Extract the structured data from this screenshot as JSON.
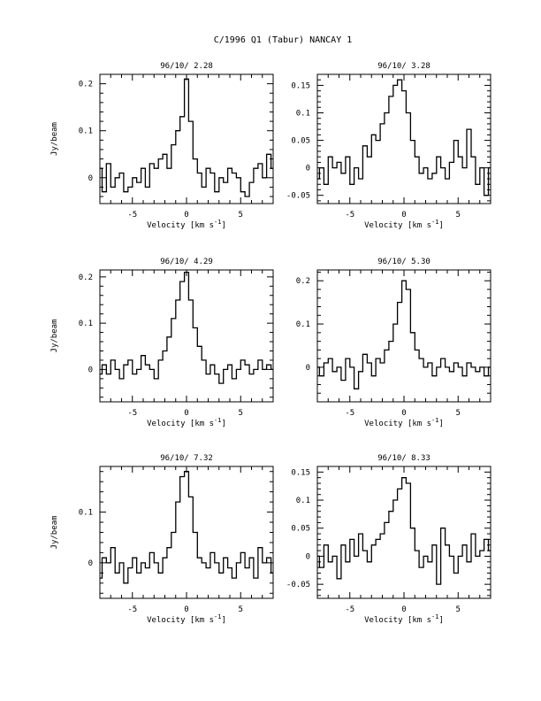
{
  "page_title": "C/1996 Q1 (Tabur)   NANCAY      1",
  "chart_data": [
    {
      "type": "line",
      "drawstyle": "steps",
      "title": "96/10/ 2.28",
      "xlabel": "Velocity [km s^-1]",
      "ylabel": "Jy/beam",
      "xlim": [
        -8,
        8
      ],
      "ylim": [
        -0.055,
        0.22
      ],
      "xticks": [
        -5,
        0,
        5
      ],
      "yticks": [
        0,
        0.1,
        0.2
      ],
      "ytick_labels": [
        "0",
        "0.1",
        "0.2"
      ],
      "series": [
        {
          "x": [
            -8.0,
            -7.6,
            -7.2,
            -6.8,
            -6.4,
            -6.0,
            -5.6,
            -5.2,
            -4.8,
            -4.4,
            -4.0,
            -3.6,
            -3.2,
            -2.8,
            -2.4,
            -2.0,
            -1.6,
            -1.2,
            -0.8,
            -0.4,
            0.0,
            0.4,
            0.8,
            1.2,
            1.6,
            2.0,
            2.4,
            2.8,
            3.2,
            3.6,
            4.0,
            4.4,
            4.8,
            5.2,
            5.6,
            6.0,
            6.4,
            6.8,
            7.2,
            7.6,
            8.0
          ],
          "y": [
            0.02,
            -0.03,
            0.03,
            -0.02,
            0.0,
            0.01,
            -0.03,
            -0.02,
            0.0,
            -0.01,
            0.02,
            -0.02,
            0.03,
            0.02,
            0.04,
            0.05,
            0.02,
            0.07,
            0.1,
            0.13,
            0.21,
            0.12,
            0.04,
            0.01,
            -0.02,
            0.02,
            0.01,
            -0.03,
            0.0,
            -0.01,
            0.02,
            0.01,
            0.0,
            -0.03,
            -0.04,
            -0.01,
            0.02,
            0.03,
            0.0,
            0.05,
            0.02
          ]
        }
      ]
    },
    {
      "type": "line",
      "drawstyle": "steps",
      "title": "96/10/ 3.28",
      "xlabel": "Velocity [km s^-1]",
      "ylabel": "",
      "xlim": [
        -8,
        8
      ],
      "ylim": [
        -0.065,
        0.17
      ],
      "xticks": [
        -5,
        0,
        5
      ],
      "yticks": [
        -0.05,
        0,
        0.05,
        0.1,
        0.15
      ],
      "ytick_labels": [
        "-0.05",
        "0",
        "0.05",
        "0.1",
        "0.15"
      ],
      "series": [
        {
          "x": [
            -8.0,
            -7.6,
            -7.2,
            -6.8,
            -6.4,
            -6.0,
            -5.6,
            -5.2,
            -4.8,
            -4.4,
            -4.0,
            -3.6,
            -3.2,
            -2.8,
            -2.4,
            -2.0,
            -1.6,
            -1.2,
            -0.8,
            -0.4,
            0.0,
            0.4,
            0.8,
            1.2,
            1.6,
            2.0,
            2.4,
            2.8,
            3.2,
            3.6,
            4.0,
            4.4,
            4.8,
            5.2,
            5.6,
            6.0,
            6.4,
            6.8,
            7.2,
            7.6,
            8.0
          ],
          "y": [
            -0.02,
            0.0,
            -0.03,
            0.02,
            0.0,
            0.01,
            -0.01,
            0.02,
            -0.03,
            0.0,
            -0.02,
            0.04,
            0.02,
            0.06,
            0.05,
            0.08,
            0.1,
            0.13,
            0.15,
            0.16,
            0.14,
            0.1,
            0.05,
            0.02,
            -0.01,
            0.0,
            -0.02,
            -0.01,
            0.02,
            0.0,
            -0.02,
            0.01,
            0.05,
            0.02,
            0.0,
            0.07,
            0.02,
            -0.03,
            0.0,
            -0.05,
            0.0
          ]
        }
      ]
    },
    {
      "type": "line",
      "drawstyle": "steps",
      "title": "96/10/ 4.29",
      "xlabel": "Velocity [km s^-1]",
      "ylabel": "Jy/beam",
      "xlim": [
        -8,
        8
      ],
      "ylim": [
        -0.07,
        0.215
      ],
      "xticks": [
        -5,
        0,
        5
      ],
      "yticks": [
        0,
        0.1,
        0.2
      ],
      "ytick_labels": [
        "0",
        "0.1",
        "0.2"
      ],
      "series": [
        {
          "x": [
            -8.0,
            -7.6,
            -7.2,
            -6.8,
            -6.4,
            -6.0,
            -5.6,
            -5.2,
            -4.8,
            -4.4,
            -4.0,
            -3.6,
            -3.2,
            -2.8,
            -2.4,
            -2.0,
            -1.6,
            -1.2,
            -0.8,
            -0.4,
            0.0,
            0.4,
            0.8,
            1.2,
            1.6,
            2.0,
            2.4,
            2.8,
            3.2,
            3.6,
            4.0,
            4.4,
            4.8,
            5.2,
            5.6,
            6.0,
            6.4,
            6.8,
            7.2,
            7.6,
            8.0
          ],
          "y": [
            -0.01,
            0.01,
            -0.01,
            0.02,
            0.0,
            -0.02,
            0.01,
            0.02,
            -0.01,
            0.0,
            0.03,
            0.01,
            0.0,
            -0.02,
            0.02,
            0.04,
            0.07,
            0.11,
            0.15,
            0.19,
            0.21,
            0.15,
            0.09,
            0.05,
            0.02,
            -0.01,
            0.01,
            -0.01,
            -0.03,
            0.0,
            0.01,
            -0.02,
            0.0,
            0.02,
            0.01,
            -0.01,
            0.0,
            0.02,
            0.0,
            0.01,
            0.0
          ]
        }
      ]
    },
    {
      "type": "line",
      "drawstyle": "steps",
      "title": "96/10/ 5.30",
      "xlabel": "Velocity [km s^-1]",
      "ylabel": "",
      "xlim": [
        -8,
        8
      ],
      "ylim": [
        -0.08,
        0.225
      ],
      "xticks": [
        -5,
        0,
        5
      ],
      "yticks": [
        0,
        0.1,
        0.2
      ],
      "ytick_labels": [
        "0",
        "0.1",
        "0.2"
      ],
      "series": [
        {
          "x": [
            -8.0,
            -7.6,
            -7.2,
            -6.8,
            -6.4,
            -6.0,
            -5.6,
            -5.2,
            -4.8,
            -4.4,
            -4.0,
            -3.6,
            -3.2,
            -2.8,
            -2.4,
            -2.0,
            -1.6,
            -1.2,
            -0.8,
            -0.4,
            0.0,
            0.4,
            0.8,
            1.2,
            1.6,
            2.0,
            2.4,
            2.8,
            3.2,
            3.6,
            4.0,
            4.4,
            4.8,
            5.2,
            5.6,
            6.0,
            6.4,
            6.8,
            7.2,
            7.6,
            8.0
          ],
          "y": [
            0.0,
            -0.02,
            0.01,
            0.02,
            -0.01,
            0.0,
            -0.03,
            0.02,
            0.0,
            -0.05,
            -0.01,
            0.03,
            0.01,
            -0.02,
            0.02,
            0.01,
            0.04,
            0.06,
            0.1,
            0.15,
            0.2,
            0.18,
            0.08,
            0.04,
            0.02,
            0.0,
            0.01,
            -0.02,
            0.0,
            0.02,
            0.0,
            -0.01,
            0.01,
            0.0,
            -0.02,
            0.01,
            0.0,
            -0.01,
            0.0,
            -0.02,
            0.0
          ]
        }
      ]
    },
    {
      "type": "line",
      "drawstyle": "steps",
      "title": "96/10/ 7.32",
      "xlabel": "Velocity [km s^-1]",
      "ylabel": "Jy/beam",
      "xlim": [
        -8,
        8
      ],
      "ylim": [
        -0.07,
        0.19
      ],
      "xticks": [
        -5,
        0,
        5
      ],
      "yticks": [
        0,
        0.1
      ],
      "ytick_labels": [
        "0",
        "0.1"
      ],
      "series": [
        {
          "x": [
            -8.0,
            -7.6,
            -7.2,
            -6.8,
            -6.4,
            -6.0,
            -5.6,
            -5.2,
            -4.8,
            -4.4,
            -4.0,
            -3.6,
            -3.2,
            -2.8,
            -2.4,
            -2.0,
            -1.6,
            -1.2,
            -0.8,
            -0.4,
            0.0,
            0.4,
            0.8,
            1.2,
            1.6,
            2.0,
            2.4,
            2.8,
            3.2,
            3.6,
            4.0,
            4.4,
            4.8,
            5.2,
            5.6,
            6.0,
            6.4,
            6.8,
            7.2,
            7.6,
            8.0
          ],
          "y": [
            -0.03,
            0.01,
            0.0,
            0.03,
            -0.02,
            0.0,
            -0.04,
            -0.01,
            0.01,
            -0.02,
            0.0,
            -0.01,
            0.02,
            0.0,
            -0.02,
            0.01,
            0.03,
            0.06,
            0.12,
            0.17,
            0.18,
            0.13,
            0.06,
            0.01,
            0.0,
            -0.01,
            0.02,
            0.0,
            -0.02,
            0.01,
            -0.01,
            -0.03,
            0.0,
            0.02,
            -0.01,
            0.01,
            -0.03,
            0.03,
            0.0,
            0.01,
            -0.02
          ]
        }
      ]
    },
    {
      "type": "line",
      "drawstyle": "steps",
      "title": "96/10/ 8.33",
      "xlabel": "Velocity [km s^-1]",
      "ylabel": "",
      "xlim": [
        -8,
        8
      ],
      "ylim": [
        -0.075,
        0.16
      ],
      "xticks": [
        -5,
        0,
        5
      ],
      "yticks": [
        -0.05,
        0,
        0.05,
        0.1,
        0.15
      ],
      "ytick_labels": [
        "-0.05",
        "0",
        "0.05",
        "0.1",
        "0.15"
      ],
      "series": [
        {
          "x": [
            -8.0,
            -7.6,
            -7.2,
            -6.8,
            -6.4,
            -6.0,
            -5.6,
            -5.2,
            -4.8,
            -4.4,
            -4.0,
            -3.6,
            -3.2,
            -2.8,
            -2.4,
            -2.0,
            -1.6,
            -1.2,
            -0.8,
            -0.4,
            0.0,
            0.4,
            0.8,
            1.2,
            1.6,
            2.0,
            2.4,
            2.8,
            3.2,
            3.6,
            4.0,
            4.4,
            4.8,
            5.2,
            5.6,
            6.0,
            6.4,
            6.8,
            7.2,
            7.6,
            8.0
          ],
          "y": [
            0.0,
            -0.02,
            0.02,
            -0.01,
            0.0,
            -0.04,
            0.02,
            -0.01,
            0.03,
            0.0,
            0.04,
            0.01,
            -0.01,
            0.02,
            0.03,
            0.04,
            0.06,
            0.08,
            0.1,
            0.12,
            0.14,
            0.13,
            0.05,
            0.01,
            -0.02,
            0.0,
            -0.01,
            0.02,
            -0.05,
            0.05,
            0.02,
            0.0,
            -0.03,
            0.0,
            0.02,
            -0.01,
            0.04,
            0.0,
            0.01,
            0.03,
            0.01
          ]
        }
      ]
    }
  ]
}
